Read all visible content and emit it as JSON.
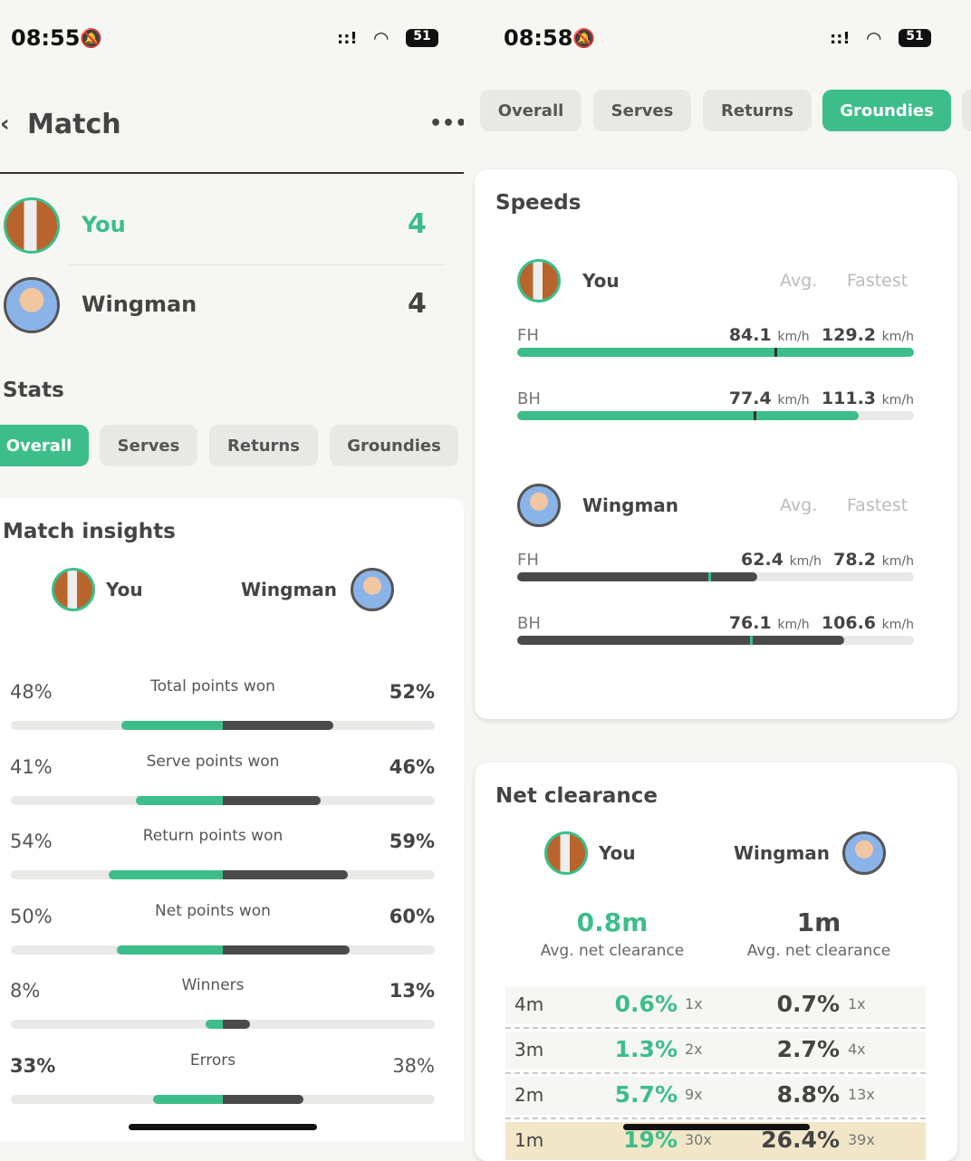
{
  "left": {
    "status": {
      "time": "08:55",
      "battery": "51"
    },
    "header": {
      "title": "Match",
      "back_icon": "chevron-left-icon",
      "menu_icon": "more-icon"
    },
    "players": [
      {
        "name": "You",
        "score": "4"
      },
      {
        "name": "Wingman",
        "score": "4"
      }
    ],
    "stats_title": "Stats",
    "tabs": [
      "Overall",
      "Serves",
      "Returns",
      "Groundies"
    ],
    "active_tab": "Overall",
    "insights": {
      "title": "Match insights",
      "you": "You",
      "opponent": "Wingman",
      "rows": [
        {
          "label": "Total points won",
          "you": "48%",
          "opp": "52%",
          "you_value": 48,
          "opp_value": 52,
          "bold": "opp"
        },
        {
          "label": "Serve points won",
          "you": "41%",
          "opp": "46%",
          "you_value": 41,
          "opp_value": 46,
          "bold": "opp"
        },
        {
          "label": "Return points won",
          "you": "54%",
          "opp": "59%",
          "you_value": 54,
          "opp_value": 59,
          "bold": "opp"
        },
        {
          "label": "Net points won",
          "you": "50%",
          "opp": "60%",
          "you_value": 50,
          "opp_value": 60,
          "bold": "opp"
        },
        {
          "label": "Winners",
          "you": "8%",
          "opp": "13%",
          "you_value": 8,
          "opp_value": 13,
          "bold": "opp"
        },
        {
          "label": "Errors",
          "you": "33%",
          "opp": "38%",
          "you_value": 33,
          "opp_value": 38,
          "bold": "you"
        }
      ]
    }
  },
  "right": {
    "status": {
      "time": "08:58",
      "battery": "51"
    },
    "tabs": [
      "Overall",
      "Serves",
      "Returns",
      "Groundies"
    ],
    "active_tab": "Groundies",
    "speeds": {
      "title": "Speeds",
      "avg_label": "Avg.",
      "fastest_label": "Fastest",
      "unit": "km/h",
      "scale_max": 129.2,
      "players": [
        {
          "name": "You",
          "color": "#3dbd8a",
          "rows": [
            {
              "shot": "FH",
              "avg": "84.1",
              "fastest": "129.2"
            },
            {
              "shot": "BH",
              "avg": "77.4",
              "fastest": "111.3"
            }
          ]
        },
        {
          "name": "Wingman",
          "color": "#4a4a4a",
          "rows": [
            {
              "shot": "FH",
              "avg": "62.4",
              "fastest": "78.2"
            },
            {
              "shot": "BH",
              "avg": "76.1",
              "fastest": "106.6"
            }
          ]
        }
      ]
    },
    "net": {
      "title": "Net clearance",
      "you": "You",
      "opponent": "Wingman",
      "you_avg": "0.8m",
      "opp_avg": "1m",
      "avg_label": "Avg. net clearance",
      "rows": [
        {
          "height": "4m",
          "you_pct": "0.6%",
          "you_count": "1x",
          "opp_pct": "0.7%",
          "opp_count": "1x"
        },
        {
          "height": "3m",
          "you_pct": "1.3%",
          "you_count": "2x",
          "opp_pct": "2.7%",
          "opp_count": "4x"
        },
        {
          "height": "2m",
          "you_pct": "5.7%",
          "you_count": "9x",
          "opp_pct": "8.8%",
          "opp_count": "13x"
        },
        {
          "height": "1m",
          "you_pct": "19%",
          "you_count": "30x",
          "opp_pct": "26.4%",
          "opp_count": "39x"
        }
      ]
    }
  },
  "colors": {
    "accent": "#3dbd8a",
    "dark": "#4a4a4a",
    "highlight_row": "#f1e6c8"
  }
}
